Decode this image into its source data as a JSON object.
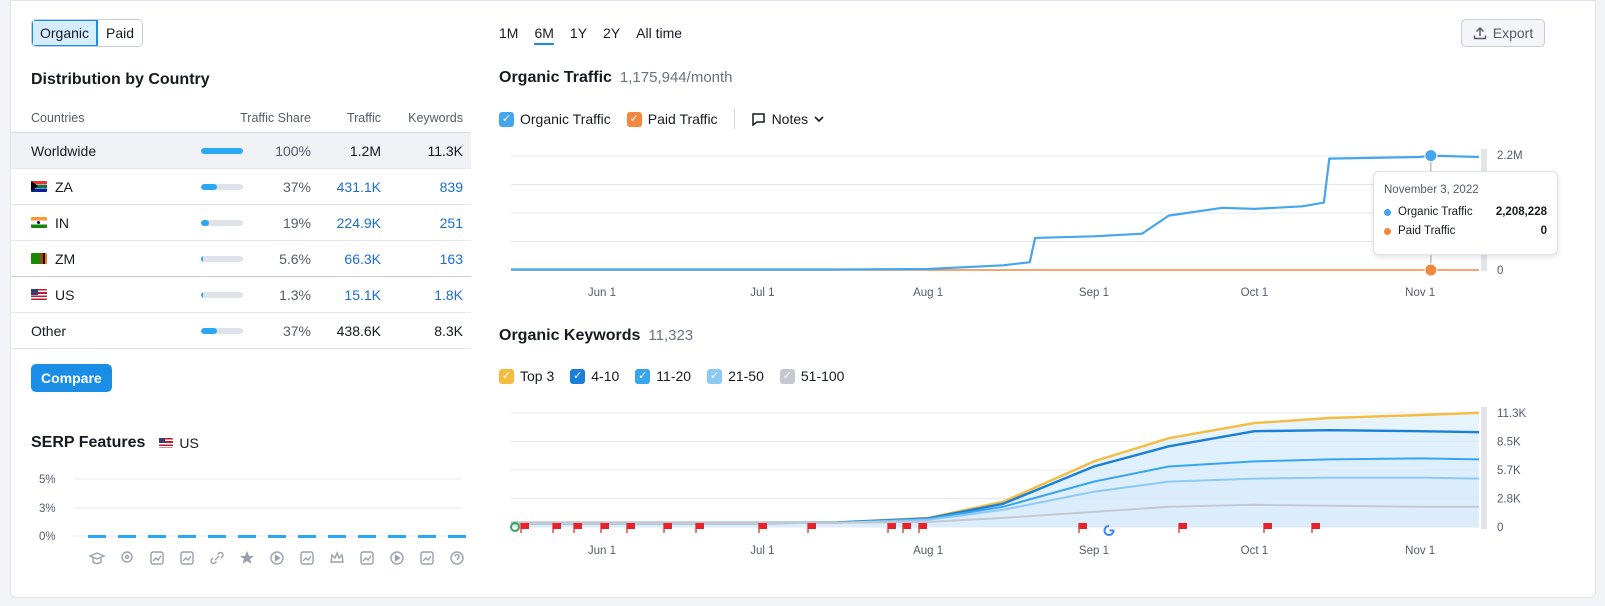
{
  "toggle": {
    "organic": "Organic",
    "paid": "Paid"
  },
  "distribution": {
    "title": "Distribution by Country",
    "headers": {
      "countries": "Countries",
      "share": "Traffic Share",
      "traffic": "Traffic",
      "keywords": "Keywords"
    },
    "rows": [
      {
        "name": "Worldwide",
        "share": "100%",
        "share_value": 100,
        "traffic": "1.2M",
        "keywords": "11.3K"
      },
      {
        "name": "ZA",
        "share": "37%",
        "share_value": 37,
        "traffic": "431.1K",
        "keywords": "839"
      },
      {
        "name": "IN",
        "share": "19%",
        "share_value": 19,
        "traffic": "224.9K",
        "keywords": "251"
      },
      {
        "name": "ZM",
        "share": "5.6%",
        "share_value": 5.6,
        "traffic": "66.3K",
        "keywords": "163"
      },
      {
        "name": "US",
        "share": "1.3%",
        "share_value": 1.3,
        "traffic": "15.1K",
        "keywords": "1.8K"
      },
      {
        "name": "Other",
        "share": "37%",
        "share_value": 37,
        "traffic": "438.6K",
        "keywords": "8.3K"
      }
    ],
    "compare_label": "Compare"
  },
  "serp": {
    "title": "SERP Features",
    "country": "US",
    "y_ticks": [
      "5%",
      "3%",
      "0%"
    ],
    "icons": [
      "graduation-cap-icon",
      "location-pin-icon",
      "news-icon",
      "image-pack-icon",
      "sitelinks-icon",
      "featured-star-icon",
      "video-icon",
      "video-carousel-icon",
      "crown-icon",
      "image-icon",
      "play-icon",
      "faq-icon",
      "question-icon"
    ]
  },
  "periods": {
    "items": [
      "1M",
      "6M",
      "1Y",
      "2Y",
      "All time"
    ],
    "selected": "6M"
  },
  "export_label": "Export",
  "organic_traffic": {
    "title": "Organic Traffic",
    "subtitle": "1,175,944/month",
    "legend": {
      "organic": "Organic Traffic",
      "paid": "Paid Traffic",
      "notes": "Notes"
    },
    "y_ticks": [
      "2.2M",
      "0"
    ],
    "x_ticks": [
      "Jun 1",
      "Jul 1",
      "Aug 1",
      "Sep 1",
      "Oct 1",
      "Nov 1"
    ],
    "tooltip": {
      "date": "November 3, 2022",
      "organic_label": "Organic Traffic",
      "organic_value": "2,208,228",
      "paid_label": "Paid Traffic",
      "paid_value": "0"
    }
  },
  "organic_keywords": {
    "title": "Organic Keywords",
    "subtitle": "11,323",
    "legend": [
      "Top 3",
      "4-10",
      "11-20",
      "21-50",
      "51-100"
    ],
    "y_ticks": [
      "11.3K",
      "8.5K",
      "5.7K",
      "2.8K",
      "0"
    ],
    "x_ticks": [
      "Jun 1",
      "Jul 1",
      "Aug 1",
      "Sep 1",
      "Oct 1",
      "Nov 1"
    ]
  },
  "colors": {
    "accent": "#1a8de6",
    "organic": "#45a6ee",
    "paid": "#f2873d",
    "top3": "#f5bd3f",
    "k4_10": "#1a7fd8",
    "k11_20": "#37a6ef",
    "k21_50": "#8ccaf5",
    "k51_100": "#c5c8d2"
  },
  "chart_data": [
    {
      "type": "line",
      "title": "Organic Traffic",
      "x": [
        "May 15",
        "Jun 1",
        "Jun 15",
        "Jul 1",
        "Jul 15",
        "Aug 1",
        "Aug 15",
        "Aug 20",
        "Aug 21",
        "Sep 1",
        "Sep 10",
        "Sep 15",
        "Sep 25",
        "Oct 1",
        "Oct 10",
        "Oct 14",
        "Oct 15",
        "Nov 1",
        "Nov 3",
        "Nov 12"
      ],
      "series": [
        {
          "name": "Organic Traffic",
          "values": [
            10000,
            10000,
            10000,
            10000,
            10000,
            20000,
            90000,
            150000,
            620000,
            650000,
            700000,
            1050000,
            1200000,
            1180000,
            1230000,
            1300000,
            2150000,
            2180000,
            2208228,
            2180000
          ]
        },
        {
          "name": "Paid Traffic",
          "values": [
            0,
            0,
            0,
            0,
            0,
            0,
            0,
            0,
            0,
            0,
            0,
            0,
            0,
            0,
            0,
            0,
            0,
            0,
            0,
            0
          ]
        }
      ],
      "ylim": [
        0,
        2200000
      ]
    },
    {
      "type": "area",
      "title": "Organic Keywords",
      "x": [
        "May 15",
        "Jun 1",
        "Jun 15",
        "Jul 1",
        "Jul 15",
        "Aug 1",
        "Aug 15",
        "Sep 1",
        "Sep 15",
        "Oct 1",
        "Oct 15",
        "Nov 1",
        "Nov 12"
      ],
      "series": [
        {
          "name": "Top 3",
          "values": [
            400,
            400,
            400,
            400,
            450,
            900,
            2500,
            6500,
            8800,
            10300,
            10800,
            11100,
            11323
          ]
        },
        {
          "name": "4-10",
          "values": [
            400,
            400,
            400,
            400,
            450,
            850,
            2300,
            6000,
            8000,
            9500,
            9600,
            9500,
            9400
          ]
        },
        {
          "name": "11-20",
          "values": [
            400,
            400,
            400,
            400,
            440,
            800,
            2000,
            4500,
            6000,
            6500,
            6700,
            6800,
            6700
          ]
        },
        {
          "name": "21-50",
          "values": [
            400,
            400,
            400,
            400,
            430,
            700,
            1700,
            3500,
            4500,
            4800,
            4900,
            4900,
            4800
          ]
        },
        {
          "name": "51-100",
          "values": [
            400,
            400,
            400,
            400,
            420,
            500,
            900,
            1500,
            2000,
            2200,
            2100,
            2000,
            2000
          ]
        }
      ],
      "ylim": [
        0,
        11300
      ]
    }
  ]
}
